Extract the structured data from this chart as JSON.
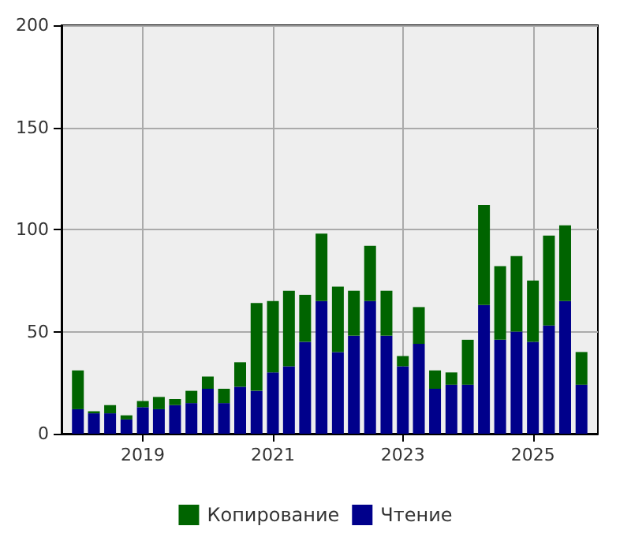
{
  "chart_data": {
    "type": "bar",
    "stacked": true,
    "x": [
      "2018-01",
      "2018-04",
      "2018-07",
      "2018-10",
      "2019-01",
      "2019-04",
      "2019-07",
      "2019-10",
      "2020-01",
      "2020-04",
      "2020-07",
      "2020-10",
      "2021-01",
      "2021-04",
      "2021-07",
      "2021-10",
      "2022-01",
      "2022-04",
      "2022-07",
      "2022-10",
      "2023-01",
      "2023-04",
      "2023-07",
      "2023-10",
      "2024-01",
      "2024-04",
      "2024-07",
      "2024-10",
      "2025-01",
      "2025-04",
      "2025-07",
      "2025-10"
    ],
    "series": [
      {
        "name": "Чтение",
        "color": "#00008b",
        "values": [
          12,
          10,
          10,
          7,
          13,
          12,
          14,
          15,
          22,
          15,
          23,
          21,
          30,
          33,
          45,
          65,
          40,
          48,
          65,
          48,
          33,
          44,
          22,
          24,
          24,
          63,
          46,
          50,
          45,
          53,
          65,
          24
        ]
      },
      {
        "name": "Копирование",
        "color": "#006400",
        "values": [
          19,
          1,
          4,
          2,
          3,
          6,
          3,
          6,
          6,
          7,
          12,
          43,
          35,
          37,
          23,
          33,
          32,
          22,
          27,
          22,
          5,
          18,
          9,
          6,
          22,
          49,
          36,
          37,
          30,
          44,
          37,
          16
        ]
      }
    ],
    "xlim": [
      "2017-10",
      "2026-01"
    ],
    "xticks": [
      "2019",
      "2021",
      "2023",
      "2025"
    ],
    "ylim": [
      0,
      200
    ],
    "yticks": [
      0,
      50,
      100,
      150,
      200
    ],
    "grid": true,
    "legend": "bottom"
  }
}
